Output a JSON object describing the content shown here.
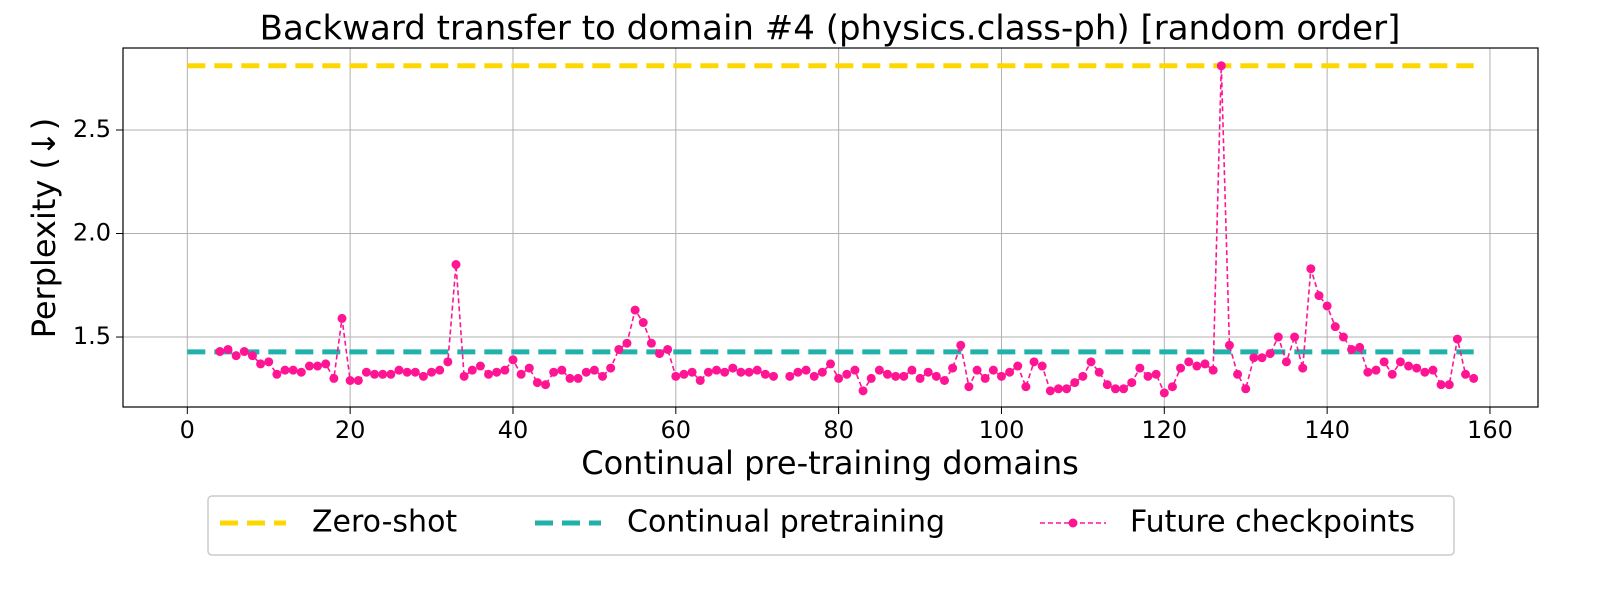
{
  "chart_data": {
    "type": "line",
    "title": "Backward transfer to domain #4 (physics.class-ph) [random order]",
    "xlabel": "Continual pre-training domains",
    "ylabel": "Perplexity (↓)",
    "xlim": [
      -7.9,
      165.9
    ],
    "ylim": [
      1.162,
      2.896
    ],
    "xticks": [
      0,
      20,
      40,
      60,
      80,
      100,
      120,
      140,
      160
    ],
    "yticks": [
      {
        "value": 1.5,
        "label": "1.5"
      },
      {
        "value": 2.0,
        "label": "2.0"
      },
      2.5
    ],
    "grid": true,
    "legend": "below",
    "series": [
      {
        "name": "Zero-shot",
        "color": "#ffd700",
        "style": "dashed",
        "x": [
          0,
          158
        ],
        "values": [
          2.81,
          2.81
        ]
      },
      {
        "name": "Continual pretraining",
        "color": "#20b2aa",
        "style": "dashed",
        "x": [
          0,
          158
        ],
        "values": [
          1.428,
          1.428
        ]
      },
      {
        "name": "Future checkpoints",
        "color": "#ff1493",
        "style": "dashed-markers",
        "x": [
          4,
          5,
          6,
          7,
          8,
          9,
          10,
          11,
          12,
          13,
          14,
          15,
          16,
          17,
          18,
          19,
          20,
          21,
          22,
          23,
          24,
          25,
          26,
          27,
          28,
          29,
          30,
          31,
          32,
          33,
          34,
          35,
          36,
          37,
          38,
          39,
          40,
          41,
          42,
          43,
          44,
          45,
          46,
          47,
          48,
          49,
          50,
          51,
          52,
          53,
          54,
          55,
          56,
          57,
          58,
          59,
          60,
          61,
          62,
          63,
          64,
          65,
          66,
          67,
          68,
          69,
          70,
          71,
          72,
          73,
          74,
          75,
          76,
          77,
          78,
          79,
          80,
          81,
          82,
          83,
          84,
          85,
          86,
          87,
          88,
          89,
          90,
          91,
          92,
          93,
          94,
          95,
          96,
          97,
          98,
          99,
          100,
          101,
          102,
          103,
          104,
          105,
          106,
          107,
          108,
          109,
          110,
          111,
          112,
          113,
          114,
          115,
          116,
          117,
          118,
          119,
          120,
          121,
          122,
          123,
          124,
          125,
          126,
          127,
          128,
          129,
          130,
          131,
          132,
          133,
          134,
          135,
          136,
          137,
          138,
          139,
          140,
          141,
          142,
          143,
          144,
          145,
          146,
          147,
          148,
          149,
          150,
          151,
          152,
          153,
          154,
          155,
          156,
          157,
          158
        ],
        "values": [
          1.43,
          1.44,
          1.41,
          1.43,
          1.41,
          1.37,
          1.38,
          1.32,
          1.34,
          1.34,
          1.33,
          1.36,
          1.36,
          1.37,
          1.3,
          1.59,
          1.29,
          1.29,
          1.33,
          1.32,
          1.32,
          1.32,
          1.34,
          1.33,
          1.33,
          1.31,
          1.33,
          1.34,
          1.38,
          1.85,
          1.31,
          1.34,
          1.36,
          1.32,
          1.33,
          1.34,
          1.39,
          1.32,
          1.35,
          1.28,
          1.27,
          1.33,
          1.34,
          1.3,
          1.3,
          1.33,
          1.34,
          1.31,
          1.35,
          1.44,
          1.47,
          1.63,
          1.57,
          1.47,
          1.42,
          1.44,
          1.31,
          1.32,
          1.33,
          1.29,
          1.33,
          1.34,
          1.33,
          1.35,
          1.33,
          1.33,
          1.34,
          1.32,
          1.31,
          null,
          1.31,
          1.33,
          1.34,
          1.31,
          1.33,
          1.37,
          1.3,
          1.32,
          1.34,
          1.24,
          1.3,
          1.34,
          1.32,
          1.31,
          1.31,
          1.34,
          1.3,
          1.33,
          1.31,
          1.29,
          1.35,
          1.46,
          1.26,
          1.34,
          1.3,
          1.34,
          1.31,
          1.33,
          1.36,
          1.26,
          1.38,
          1.36,
          1.24,
          1.25,
          1.25,
          1.28,
          1.31,
          1.38,
          1.33,
          1.27,
          1.25,
          1.25,
          1.28,
          1.35,
          1.31,
          1.32,
          1.23,
          1.26,
          1.35,
          1.38,
          1.36,
          1.37,
          1.34,
          2.81,
          1.46,
          1.32,
          1.25,
          1.4,
          1.4,
          1.42,
          1.5,
          1.38,
          1.5,
          1.35,
          1.83,
          1.7,
          1.65,
          1.55,
          1.5,
          1.44,
          1.45,
          1.33,
          1.34,
          1.38,
          1.32,
          1.38,
          1.36,
          1.35,
          1.33,
          1.34,
          1.27,
          1.27,
          1.49,
          1.32,
          1.3
        ]
      }
    ]
  }
}
